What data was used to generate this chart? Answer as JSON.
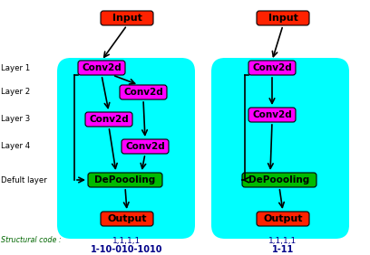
{
  "bg_color": "#00FFFF",
  "input_color": "#FF2200",
  "conv_color": "#FF00FF",
  "depool_color": "#00BB00",
  "output_color": "#FF2200",
  "text_color_blue_dark": "#000088",
  "text_color_green": "#006600",
  "layer_labels": [
    "Layer 1",
    "Layer 2",
    "Layer 3",
    "Layer 4",
    "Defult layer"
  ],
  "structural_code_label": "Structural code :",
  "left_code_line1": "1,1,1,1",
  "left_code_line2": "1-10-010-1010",
  "right_code_line1": "1,1,1,1",
  "right_code_line2": "1-11",
  "fig_w": 4.08,
  "fig_h": 2.82,
  "dpi": 100
}
